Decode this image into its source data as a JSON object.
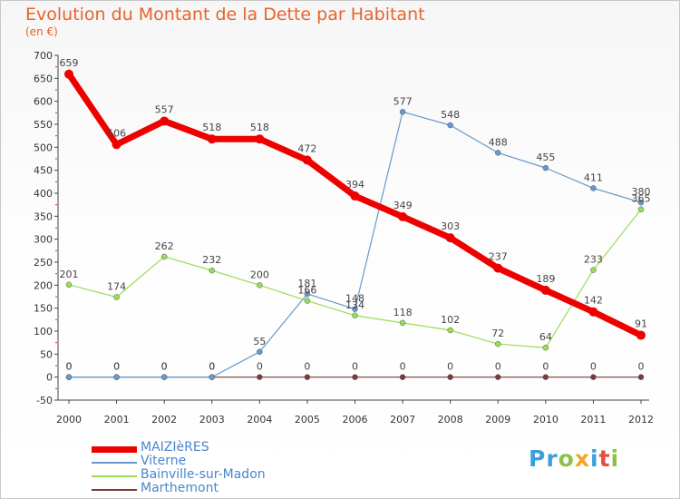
{
  "chart_data": {
    "type": "line",
    "title": "Evolution du Montant de la Dette par Habitant",
    "subtitle": "(en €)",
    "x": [
      "2000",
      "2001",
      "2002",
      "2003",
      "2004",
      "2005",
      "2006",
      "2007",
      "2008",
      "2009",
      "2010",
      "2011",
      "2012"
    ],
    "ylim": [
      -50,
      700
    ],
    "yticks": [
      -50,
      0,
      50,
      100,
      150,
      200,
      250,
      300,
      350,
      400,
      450,
      500,
      550,
      600,
      650,
      700
    ],
    "grid": false,
    "legend_position": "bottom-left",
    "series": [
      {
        "name": "MAIZIèRES",
        "color": "#ee0000",
        "values": [
          659,
          506,
          557,
          518,
          518,
          472,
          394,
          349,
          303,
          237,
          189,
          142,
          91
        ]
      },
      {
        "name": "Viterne",
        "color": "#6699cc",
        "values": [
          0,
          0,
          0,
          0,
          55,
          181,
          148,
          577,
          548,
          488,
          455,
          411,
          380
        ]
      },
      {
        "name": "Bainville-sur-Madon",
        "color": "#99dd55",
        "values": [
          201,
          174,
          262,
          232,
          200,
          166,
          134,
          118,
          102,
          72,
          64,
          233,
          365
        ]
      },
      {
        "name": "Marthemont",
        "color": "#7a3a3a",
        "values": [
          0,
          0,
          0,
          0,
          0,
          0,
          0,
          0,
          0,
          0,
          0,
          0,
          0
        ]
      }
    ]
  },
  "logo": {
    "letters": [
      "P",
      "r",
      "o",
      "x",
      "i",
      "t",
      "i"
    ],
    "colors": [
      "#3aa0dd",
      "#3aa0dd",
      "#8bc34a",
      "#f5a623",
      "#3aa0dd",
      "#e74c3c",
      "#8bc34a"
    ]
  }
}
